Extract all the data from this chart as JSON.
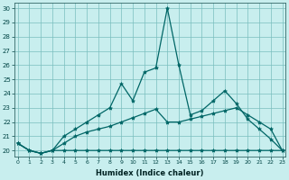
{
  "xlabel": "Humidex (Indice chaleur)",
  "bg_color": "#c8eeee",
  "grid_color": "#7abebe",
  "line_color": "#006666",
  "xlim_min": -0.3,
  "xlim_max": 23.3,
  "ylim_min": 19.6,
  "ylim_max": 30.4,
  "yticks": [
    20,
    21,
    22,
    23,
    24,
    25,
    26,
    27,
    28,
    29,
    30
  ],
  "xticks": [
    0,
    1,
    2,
    3,
    4,
    5,
    6,
    7,
    8,
    9,
    10,
    11,
    12,
    13,
    14,
    15,
    16,
    17,
    18,
    19,
    20,
    21,
    22,
    23
  ],
  "series": [
    [
      20.5,
      20.0,
      19.8,
      20.0,
      20.0,
      20.0,
      20.0,
      20.0,
      20.0,
      20.0,
      20.0,
      20.0,
      20.0,
      20.0,
      20.0,
      20.0,
      20.0,
      20.0,
      20.0,
      20.0,
      20.0,
      20.0,
      20.0,
      20.0
    ],
    [
      20.5,
      20.0,
      19.8,
      20.0,
      20.5,
      21.0,
      21.3,
      21.5,
      21.7,
      22.0,
      22.3,
      22.6,
      22.9,
      22.0,
      22.0,
      22.2,
      22.4,
      22.6,
      22.8,
      23.0,
      22.5,
      22.0,
      21.5,
      20.0
    ],
    [
      20.5,
      20.0,
      19.8,
      20.0,
      21.0,
      21.5,
      22.0,
      22.5,
      23.0,
      24.7,
      23.5,
      25.5,
      25.8,
      30.0,
      26.0,
      22.5,
      22.8,
      23.5,
      24.2,
      23.3,
      22.2,
      21.5,
      20.8,
      20.0
    ]
  ]
}
